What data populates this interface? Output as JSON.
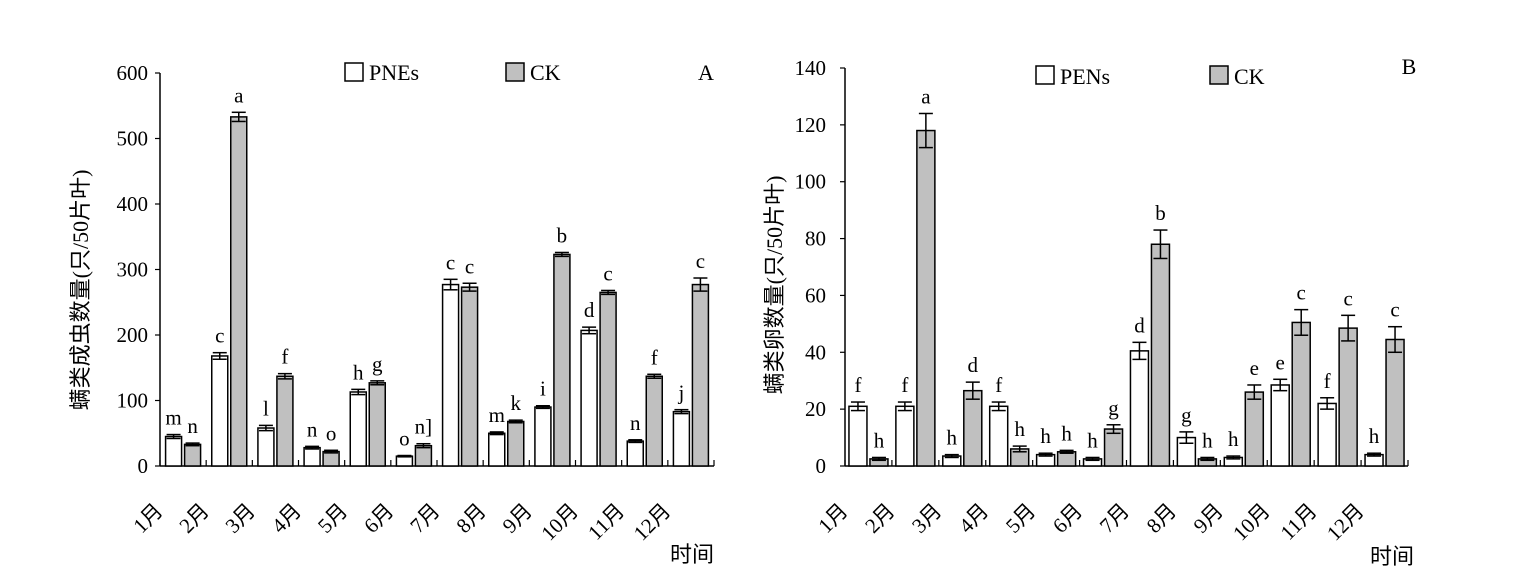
{
  "chart_data": [
    {
      "type": "bar",
      "panel_label": "A",
      "ylabel": "螨类成虫数量(只/50片叶)",
      "xlabel": "时间",
      "categories": [
        "1月",
        "2月",
        "3月",
        "4月",
        "5月",
        "6月",
        "7月",
        "8月",
        "9月",
        "10月",
        "11月",
        "12月"
      ],
      "ylim": [
        0,
        600
      ],
      "yticks": [
        0,
        100,
        200,
        300,
        400,
        500,
        600
      ],
      "legend_position": "top",
      "series": [
        {
          "name": "PNEs",
          "color": "#ffffff",
          "values": [
            45,
            168,
            58,
            28,
            113,
            15,
            277,
            50,
            90,
            207,
            38,
            83
          ],
          "errors": [
            3,
            5,
            4,
            2,
            4,
            1,
            8,
            2,
            2,
            5,
            2,
            3
          ],
          "sig_labels": [
            "m",
            "c",
            "l",
            "n",
            "h",
            "o",
            "c",
            "m",
            "i",
            "d",
            "n",
            "j"
          ]
        },
        {
          "name": "CK",
          "color": "#c0c0c0",
          "values": [
            33,
            533,
            137,
            22,
            127,
            31,
            273,
            68,
            323,
            265,
            137,
            277
          ],
          "errors": [
            2,
            7,
            4,
            2,
            3,
            3,
            6,
            2,
            3,
            3,
            3,
            10
          ],
          "sig_labels": [
            "n",
            "a",
            "f",
            "o",
            "g",
            "n]",
            "c",
            "k",
            "b",
            "c",
            "f",
            "c"
          ]
        }
      ]
    },
    {
      "type": "bar",
      "panel_label": "B",
      "ylabel": "螨类卵数量(只/50片叶)",
      "xlabel": "时间",
      "categories": [
        "1月",
        "2月",
        "3月",
        "4月",
        "5月",
        "6月",
        "7月",
        "8月",
        "9月",
        "10月",
        "11月",
        "12月"
      ],
      "ylim": [
        0,
        140
      ],
      "yticks": [
        0,
        20,
        40,
        60,
        80,
        100,
        120,
        140
      ],
      "legend_position": "top",
      "series": [
        {
          "name": "PENs",
          "color": "#ffffff",
          "values": [
            21,
            21,
            3.5,
            21,
            4,
            2.5,
            40.5,
            10,
            3,
            28.5,
            22,
            4
          ],
          "errors": [
            1.5,
            1.5,
            0.5,
            1.5,
            0.5,
            0.5,
            3,
            2,
            0.5,
            2,
            2,
            0.5
          ],
          "sig_labels": [
            "f",
            "f",
            "h",
            "f",
            "h",
            "h",
            "d",
            "g",
            "h",
            "e",
            "f",
            "h"
          ]
        },
        {
          "name": "CK",
          "color": "#c0c0c0",
          "values": [
            2.5,
            118,
            26.5,
            6,
            5,
            13,
            78,
            2.5,
            26,
            50.5,
            48.5,
            44.5
          ],
          "errors": [
            0.5,
            6,
            3,
            1,
            0.5,
            1.5,
            5,
            0.5,
            2.5,
            4.5,
            4.5,
            4.5
          ],
          "sig_labels": [
            "h",
            "a",
            "d",
            "h",
            "h",
            "g",
            "b",
            "h",
            "e",
            "c",
            "c",
            "c"
          ]
        }
      ]
    }
  ]
}
